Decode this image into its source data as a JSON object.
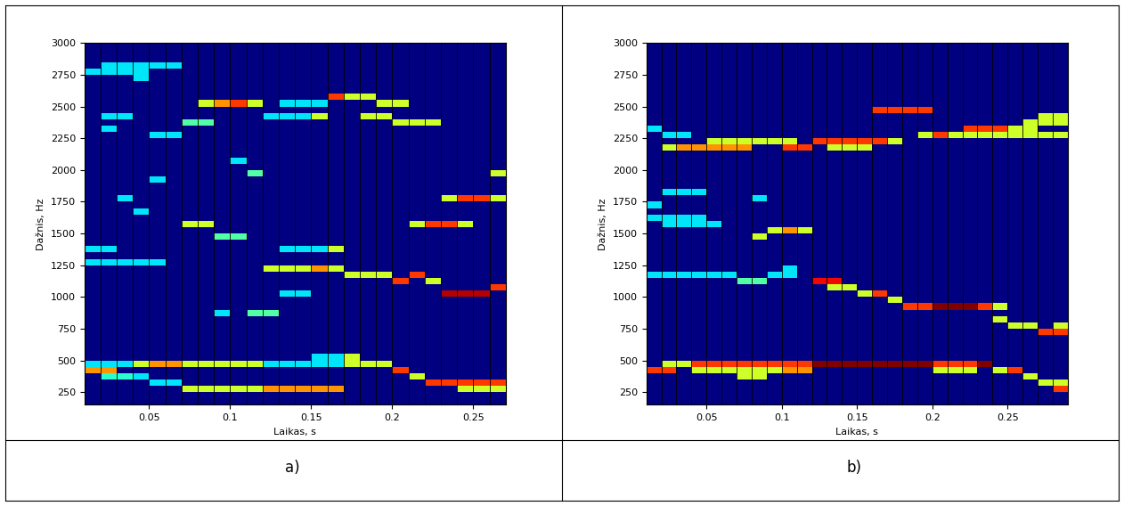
{
  "chart_data": [
    {
      "type": "heatmap",
      "caption": "a)",
      "xlabel": "Laikas, s",
      "ylabel": "Dažnis, Hz",
      "xlim": [
        0.01,
        0.27
      ],
      "ylim": [
        150,
        3000
      ],
      "xticks": [
        0.05,
        0.1,
        0.15,
        0.2,
        0.25
      ],
      "yticks": [
        250,
        500,
        750,
        1000,
        1250,
        1500,
        1750,
        2000,
        2250,
        2500,
        2750,
        3000
      ],
      "time_step": 0.01,
      "freq_step": 50,
      "color_range": [
        0,
        1
      ],
      "cells": [
        [
          0.01,
          0.04,
          475,
          0.35
        ],
        [
          0.04,
          0.05,
          475,
          0.6
        ],
        [
          0.05,
          0.07,
          475,
          0.75
        ],
        [
          0.07,
          0.08,
          475,
          0.6
        ],
        [
          0.08,
          0.12,
          475,
          0.6
        ],
        [
          0.12,
          0.17,
          475,
          0.35
        ],
        [
          0.15,
          0.17,
          525,
          0.35
        ],
        [
          0.17,
          0.18,
          525,
          0.6
        ],
        [
          0.17,
          0.2,
          475,
          0.6
        ],
        [
          0.2,
          0.21,
          425,
          0.85
        ],
        [
          0.21,
          0.22,
          375,
          0.6
        ],
        [
          0.22,
          0.23,
          325,
          0.85
        ],
        [
          0.23,
          0.27,
          325,
          0.85
        ],
        [
          0.01,
          0.03,
          425,
          0.75
        ],
        [
          0.02,
          0.04,
          375,
          0.4
        ],
        [
          0.04,
          0.05,
          375,
          0.35
        ],
        [
          0.05,
          0.07,
          325,
          0.35
        ],
        [
          0.07,
          0.12,
          275,
          0.6
        ],
        [
          0.12,
          0.17,
          275,
          0.75
        ],
        [
          0.24,
          0.27,
          275,
          0.6
        ],
        [
          0.01,
          0.06,
          1275,
          0.35
        ],
        [
          0.12,
          0.15,
          1225,
          0.6
        ],
        [
          0.15,
          0.16,
          1225,
          0.75
        ],
        [
          0.16,
          0.17,
          1225,
          0.6
        ],
        [
          0.17,
          0.2,
          1175,
          0.6
        ],
        [
          0.2,
          0.21,
          1125,
          0.85
        ],
        [
          0.21,
          0.22,
          1175,
          0.85
        ],
        [
          0.22,
          0.23,
          1125,
          0.6
        ],
        [
          0.23,
          0.26,
          1025,
          0.95
        ],
        [
          0.26,
          0.27,
          1075,
          0.85
        ],
        [
          0.21,
          0.22,
          1575,
          0.6
        ],
        [
          0.22,
          0.24,
          1575,
          0.85
        ],
        [
          0.24,
          0.25,
          1575,
          0.6
        ],
        [
          0.23,
          0.24,
          1775,
          0.6
        ],
        [
          0.24,
          0.26,
          1775,
          0.85
        ],
        [
          0.26,
          0.27,
          1775,
          0.6
        ],
        [
          0.26,
          0.27,
          1975,
          0.6
        ],
        [
          0.08,
          0.09,
          2525,
          0.6
        ],
        [
          0.09,
          0.1,
          2525,
          0.75
        ],
        [
          0.1,
          0.11,
          2525,
          0.85
        ],
        [
          0.11,
          0.12,
          2525,
          0.6
        ],
        [
          0.13,
          0.16,
          2525,
          0.35
        ],
        [
          0.15,
          0.16,
          2425,
          0.6
        ],
        [
          0.12,
          0.15,
          2425,
          0.35
        ],
        [
          0.16,
          0.17,
          2575,
          0.85
        ],
        [
          0.17,
          0.19,
          2575,
          0.6
        ],
        [
          0.19,
          0.21,
          2525,
          0.6
        ],
        [
          0.18,
          0.2,
          2425,
          0.6
        ],
        [
          0.2,
          0.23,
          2375,
          0.6
        ],
        [
          0.01,
          0.05,
          2775,
          0.35
        ],
        [
          0.02,
          0.04,
          2825,
          0.35
        ],
        [
          0.04,
          0.07,
          2825,
          0.35
        ],
        [
          0.04,
          0.05,
          2725,
          0.35
        ],
        [
          0.02,
          0.04,
          2425,
          0.35
        ],
        [
          0.02,
          0.03,
          2325,
          0.35
        ],
        [
          0.05,
          0.07,
          2275,
          0.35
        ],
        [
          0.07,
          0.09,
          2375,
          0.45
        ],
        [
          0.05,
          0.06,
          1925,
          0.35
        ],
        [
          0.03,
          0.04,
          1775,
          0.35
        ],
        [
          0.04,
          0.05,
          1675,
          0.35
        ],
        [
          0.01,
          0.03,
          1375,
          0.35
        ],
        [
          0.07,
          0.09,
          1575,
          0.6
        ],
        [
          0.09,
          0.11,
          1475,
          0.45
        ],
        [
          0.13,
          0.16,
          1375,
          0.35
        ],
        [
          0.16,
          0.17,
          1375,
          0.6
        ],
        [
          0.11,
          0.13,
          875,
          0.45
        ],
        [
          0.09,
          0.1,
          875,
          0.35
        ],
        [
          0.13,
          0.15,
          1025,
          0.35
        ],
        [
          0.1,
          0.11,
          2075,
          0.35
        ],
        [
          0.11,
          0.12,
          1975,
          0.45
        ]
      ]
    },
    {
      "type": "heatmap",
      "caption": "b)",
      "xlabel": "Laikas, s",
      "ylabel": "Dažnis, Hz",
      "xlim": [
        0.01,
        0.29
      ],
      "ylim": [
        150,
        3000
      ],
      "xticks": [
        0.05,
        0.1,
        0.15,
        0.2,
        0.25
      ],
      "yticks": [
        250,
        500,
        750,
        1000,
        1250,
        1500,
        1750,
        2000,
        2250,
        2500,
        2750,
        3000
      ],
      "time_step": 0.01,
      "freq_step": 50,
      "color_range": [
        0,
        1
      ],
      "cells": [
        [
          0.01,
          0.03,
          425,
          0.85
        ],
        [
          0.02,
          0.04,
          475,
          0.6
        ],
        [
          0.04,
          0.12,
          475,
          0.85
        ],
        [
          0.04,
          0.1,
          425,
          0.6
        ],
        [
          0.1,
          0.12,
          425,
          0.75
        ],
        [
          0.12,
          0.2,
          475,
          1.0
        ],
        [
          0.2,
          0.23,
          475,
          0.85
        ],
        [
          0.2,
          0.23,
          425,
          0.6
        ],
        [
          0.23,
          0.24,
          475,
          1.0
        ],
        [
          0.24,
          0.25,
          425,
          0.6
        ],
        [
          0.25,
          0.26,
          425,
          0.85
        ],
        [
          0.26,
          0.27,
          375,
          0.6
        ],
        [
          0.27,
          0.28,
          325,
          0.6
        ],
        [
          0.28,
          0.29,
          275,
          0.85
        ],
        [
          0.28,
          0.29,
          325,
          0.6
        ],
        [
          0.07,
          0.09,
          375,
          0.6
        ],
        [
          0.01,
          0.07,
          1175,
          0.35
        ],
        [
          0.07,
          0.09,
          1125,
          0.45
        ],
        [
          0.09,
          0.11,
          1175,
          0.35
        ],
        [
          0.1,
          0.11,
          1225,
          0.35
        ],
        [
          0.12,
          0.14,
          1125,
          0.9
        ],
        [
          0.13,
          0.15,
          1075,
          0.6
        ],
        [
          0.15,
          0.16,
          1025,
          0.6
        ],
        [
          0.16,
          0.17,
          1025,
          0.85
        ],
        [
          0.17,
          0.18,
          975,
          0.6
        ],
        [
          0.18,
          0.2,
          925,
          0.85
        ],
        [
          0.2,
          0.23,
          925,
          1.0
        ],
        [
          0.23,
          0.24,
          925,
          0.85
        ],
        [
          0.24,
          0.25,
          925,
          0.6
        ],
        [
          0.24,
          0.25,
          825,
          0.6
        ],
        [
          0.25,
          0.27,
          775,
          0.6
        ],
        [
          0.27,
          0.29,
          725,
          0.85
        ],
        [
          0.28,
          0.29,
          775,
          0.6
        ],
        [
          0.09,
          0.1,
          1525,
          0.6
        ],
        [
          0.1,
          0.11,
          1525,
          0.75
        ],
        [
          0.11,
          0.12,
          1525,
          0.6
        ],
        [
          0.08,
          0.09,
          1475,
          0.6
        ],
        [
          0.05,
          0.06,
          1575,
          0.35
        ],
        [
          0.01,
          0.05,
          1625,
          0.35
        ],
        [
          0.02,
          0.06,
          1575,
          0.35
        ],
        [
          0.02,
          0.05,
          1825,
          0.35
        ],
        [
          0.01,
          0.02,
          1725,
          0.35
        ],
        [
          0.08,
          0.09,
          1775,
          0.35
        ],
        [
          0.02,
          0.03,
          2175,
          0.6
        ],
        [
          0.03,
          0.08,
          2175,
          0.75
        ],
        [
          0.05,
          0.11,
          2225,
          0.6
        ],
        [
          0.1,
          0.12,
          2175,
          0.85
        ],
        [
          0.12,
          0.17,
          2225,
          0.85
        ],
        [
          0.13,
          0.16,
          2175,
          0.6
        ],
        [
          0.17,
          0.18,
          2225,
          0.6
        ],
        [
          0.16,
          0.2,
          2475,
          0.85
        ],
        [
          0.19,
          0.2,
          2275,
          0.6
        ],
        [
          0.2,
          0.22,
          2275,
          0.85
        ],
        [
          0.22,
          0.25,
          2325,
          0.85
        ],
        [
          0.21,
          0.29,
          2275,
          0.6
        ],
        [
          0.25,
          0.27,
          2325,
          0.6
        ],
        [
          0.26,
          0.29,
          2375,
          0.6
        ],
        [
          0.27,
          0.29,
          2425,
          0.6
        ],
        [
          0.01,
          0.02,
          2325,
          0.35
        ],
        [
          0.02,
          0.04,
          2275,
          0.35
        ]
      ]
    }
  ]
}
